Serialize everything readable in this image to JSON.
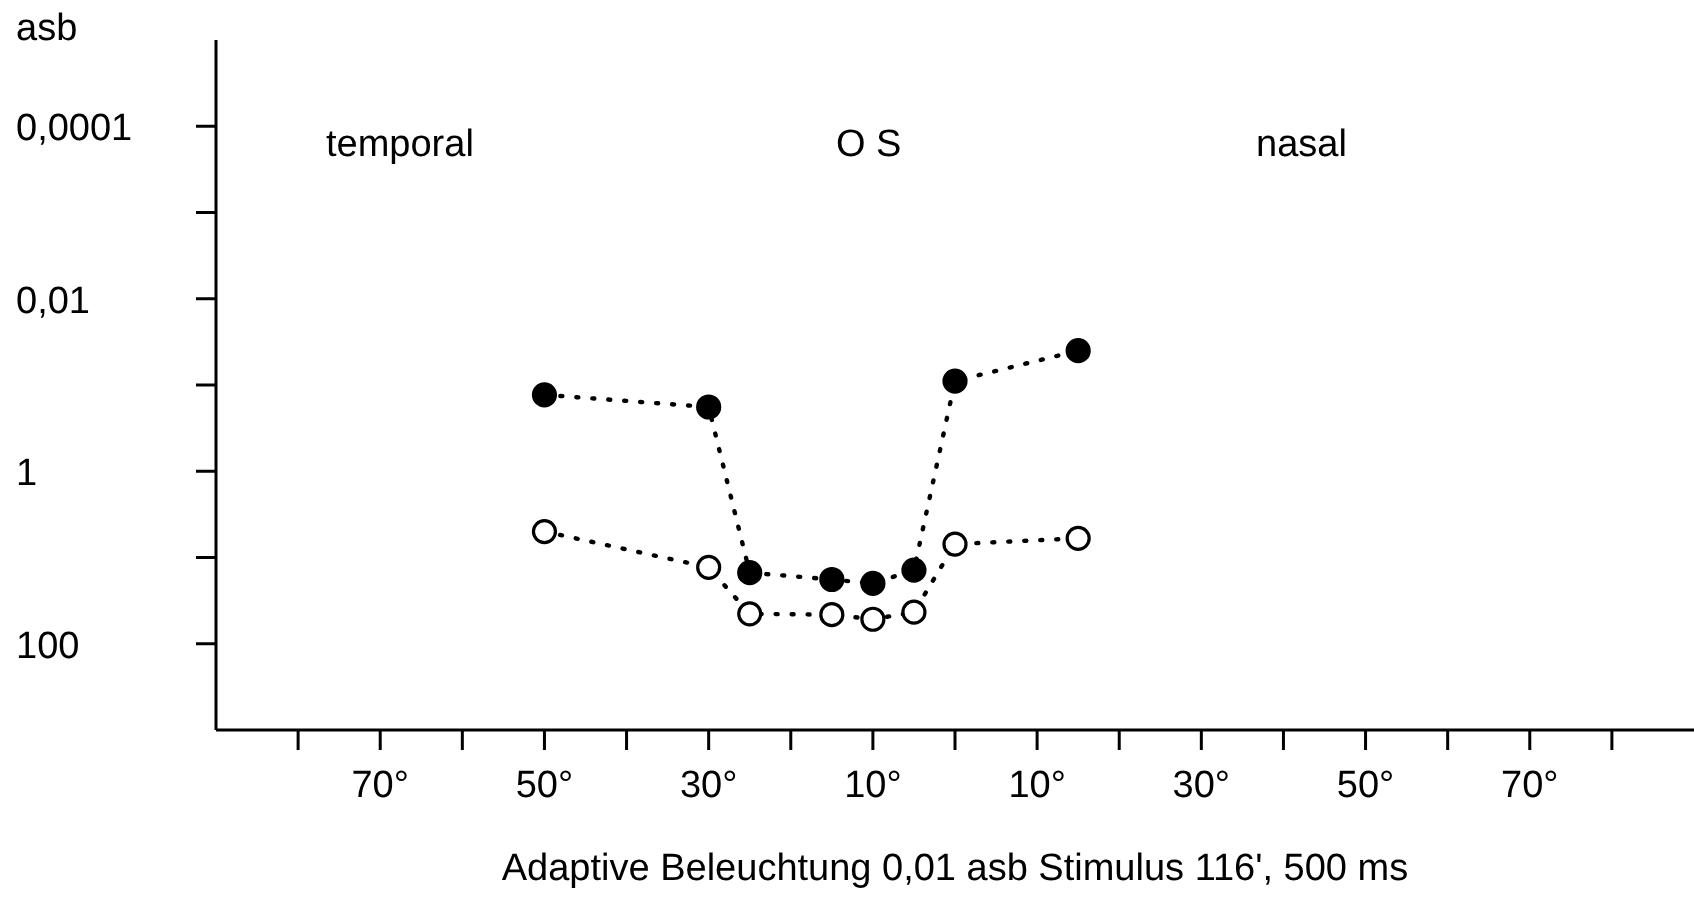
{
  "chart_data": {
    "type": "line",
    "ylabel": "asb",
    "xlabel": "Adaptive  Beleuchtung  0,01 asb     Stimulus  116', 500 ms",
    "annotations": [
      "temporal",
      "O S",
      "nasal"
    ],
    "log": "y",
    "marker": "circle",
    "line_style": "dotted",
    "xlim": [
      -90,
      90
    ],
    "xticks": [
      {
        "value": -80,
        "label": null
      },
      {
        "value": -70,
        "label": "70°"
      },
      {
        "value": -60,
        "label": null
      },
      {
        "value": -50,
        "label": "50°"
      },
      {
        "value": -40,
        "label": null
      },
      {
        "value": -30,
        "label": "30°"
      },
      {
        "value": -20,
        "label": null
      },
      {
        "value": -10,
        "label": "10°"
      },
      {
        "value": 0,
        "label": null
      },
      {
        "value": 10,
        "label": "10°"
      },
      {
        "value": 20,
        "label": null
      },
      {
        "value": 30,
        "label": "30°"
      },
      {
        "value": 40,
        "label": null
      },
      {
        "value": 50,
        "label": "50°"
      },
      {
        "value": 60,
        "label": null
      },
      {
        "value": 70,
        "label": "70°"
      },
      {
        "value": 80,
        "label": null
      }
    ],
    "ylim": [
      1000,
      1e-05
    ],
    "yticks": [
      {
        "value": 0.0001,
        "label": "0,0001"
      },
      {
        "value": 0.001,
        "label": null
      },
      {
        "value": 0.01,
        "label": "0,01"
      },
      {
        "value": 0.1,
        "label": null
      },
      {
        "value": 1,
        "label": "1"
      },
      {
        "value": 10,
        "label": null
      },
      {
        "value": 100,
        "label": "100"
      }
    ],
    "series": [
      {
        "color": "#000000",
        "x": [
          -50,
          -30,
          -25,
          -15,
          -10,
          -5,
          0,
          15
        ],
        "values": [
          0.13,
          0.18,
          15,
          18,
          20,
          14,
          0.09,
          0.04
        ]
      },
      {
        "color": "#000000",
        "x": [
          -50,
          -30,
          -25,
          -15,
          -10,
          -5,
          0,
          15
        ],
        "values": [
          5,
          13,
          45,
          46,
          52,
          43,
          7,
          6
        ]
      }
    ]
  }
}
